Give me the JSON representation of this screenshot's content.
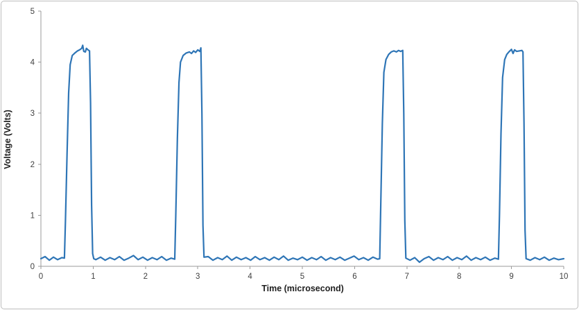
{
  "chart_data": {
    "type": "line",
    "title": "",
    "xlabel": "Time (microsecond)",
    "ylabel": "Voltage (Volts)",
    "xlim": [
      0,
      10
    ],
    "ylim": [
      0,
      5
    ],
    "x_ticks": [
      "0",
      "1",
      "2",
      "3",
      "4",
      "5",
      "6",
      "7",
      "8",
      "9",
      "10"
    ],
    "y_ticks": [
      "0",
      "1",
      "2",
      "3",
      "4",
      "5"
    ],
    "grid": false,
    "legend": "none",
    "line_color": "#2E75B6",
    "axis_color": "#9a9a9a",
    "plot_bg": "#ffffff",
    "series": [
      {
        "name": "voltage-waveform",
        "points": [
          [
            0,
            0.15
          ],
          [
            0.08,
            0.19
          ],
          [
            0.16,
            0.12
          ],
          [
            0.24,
            0.18
          ],
          [
            0.32,
            0.13
          ],
          [
            0.4,
            0.17
          ],
          [
            0.45,
            0.16
          ],
          [
            0.47,
            0.9
          ],
          [
            0.5,
            2.2
          ],
          [
            0.53,
            3.4
          ],
          [
            0.56,
            3.95
          ],
          [
            0.6,
            4.13
          ],
          [
            0.65,
            4.18
          ],
          [
            0.7,
            4.22
          ],
          [
            0.74,
            4.24
          ],
          [
            0.78,
            4.27
          ],
          [
            0.8,
            4.33
          ],
          [
            0.82,
            4.21
          ],
          [
            0.85,
            4.2
          ],
          [
            0.87,
            4.27
          ],
          [
            0.9,
            4.24
          ],
          [
            0.93,
            4.22
          ],
          [
            0.95,
            3.2
          ],
          [
            0.97,
            1.2
          ],
          [
            0.99,
            0.25
          ],
          [
            1.01,
            0.15
          ],
          [
            1.05,
            0.13
          ],
          [
            1.14,
            0.18
          ],
          [
            1.23,
            0.12
          ],
          [
            1.32,
            0.17
          ],
          [
            1.41,
            0.13
          ],
          [
            1.5,
            0.19
          ],
          [
            1.59,
            0.12
          ],
          [
            1.68,
            0.16
          ],
          [
            1.77,
            0.21
          ],
          [
            1.86,
            0.13
          ],
          [
            1.95,
            0.18
          ],
          [
            2.04,
            0.12
          ],
          [
            2.13,
            0.17
          ],
          [
            2.22,
            0.13
          ],
          [
            2.31,
            0.19
          ],
          [
            2.4,
            0.12
          ],
          [
            2.49,
            0.16
          ],
          [
            2.56,
            0.14
          ],
          [
            2.58,
            1.0
          ],
          [
            2.61,
            2.5
          ],
          [
            2.64,
            3.6
          ],
          [
            2.67,
            4.0
          ],
          [
            2.72,
            4.13
          ],
          [
            2.78,
            4.18
          ],
          [
            2.84,
            4.2
          ],
          [
            2.88,
            4.17
          ],
          [
            2.92,
            4.22
          ],
          [
            2.96,
            4.19
          ],
          [
            3.0,
            4.24
          ],
          [
            3.04,
            4.21
          ],
          [
            3.06,
            4.28
          ],
          [
            3.08,
            3.0
          ],
          [
            3.1,
            0.8
          ],
          [
            3.12,
            0.18
          ],
          [
            3.2,
            0.19
          ],
          [
            3.29,
            0.12
          ],
          [
            3.38,
            0.17
          ],
          [
            3.47,
            0.13
          ],
          [
            3.56,
            0.2
          ],
          [
            3.65,
            0.12
          ],
          [
            3.74,
            0.18
          ],
          [
            3.83,
            0.13
          ],
          [
            3.92,
            0.17
          ],
          [
            4.01,
            0.12
          ],
          [
            4.1,
            0.19
          ],
          [
            4.19,
            0.13
          ],
          [
            4.28,
            0.17
          ],
          [
            4.37,
            0.12
          ],
          [
            4.46,
            0.18
          ],
          [
            4.55,
            0.13
          ],
          [
            4.64,
            0.2
          ],
          [
            4.73,
            0.12
          ],
          [
            4.82,
            0.16
          ],
          [
            4.91,
            0.13
          ],
          [
            5.0,
            0.18
          ],
          [
            5.09,
            0.12
          ],
          [
            5.18,
            0.17
          ],
          [
            5.27,
            0.13
          ],
          [
            5.36,
            0.19
          ],
          [
            5.45,
            0.12
          ],
          [
            5.54,
            0.17
          ],
          [
            5.63,
            0.13
          ],
          [
            5.72,
            0.18
          ],
          [
            5.81,
            0.12
          ],
          [
            5.9,
            0.16
          ],
          [
            5.99,
            0.2
          ],
          [
            6.08,
            0.13
          ],
          [
            6.17,
            0.17
          ],
          [
            6.26,
            0.12
          ],
          [
            6.35,
            0.18
          ],
          [
            6.44,
            0.14
          ],
          [
            6.48,
            0.15
          ],
          [
            6.5,
            1.2
          ],
          [
            6.53,
            2.8
          ],
          [
            6.56,
            3.8
          ],
          [
            6.6,
            4.05
          ],
          [
            6.65,
            4.15
          ],
          [
            6.7,
            4.2
          ],
          [
            6.75,
            4.22
          ],
          [
            6.8,
            4.2
          ],
          [
            6.84,
            4.23
          ],
          [
            6.88,
            4.21
          ],
          [
            6.92,
            4.23
          ],
          [
            6.94,
            3.0
          ],
          [
            6.96,
            0.9
          ],
          [
            6.98,
            0.16
          ],
          [
            7.06,
            0.12
          ],
          [
            7.15,
            0.17
          ],
          [
            7.24,
            0.08
          ],
          [
            7.33,
            0.15
          ],
          [
            7.42,
            0.19
          ],
          [
            7.51,
            0.12
          ],
          [
            7.6,
            0.17
          ],
          [
            7.69,
            0.13
          ],
          [
            7.78,
            0.19
          ],
          [
            7.87,
            0.12
          ],
          [
            7.96,
            0.17
          ],
          [
            8.05,
            0.13
          ],
          [
            8.14,
            0.2
          ],
          [
            8.23,
            0.12
          ],
          [
            8.32,
            0.17
          ],
          [
            8.41,
            0.13
          ],
          [
            8.5,
            0.18
          ],
          [
            8.59,
            0.12
          ],
          [
            8.68,
            0.16
          ],
          [
            8.75,
            0.14
          ],
          [
            8.77,
            1.0
          ],
          [
            8.8,
            2.6
          ],
          [
            8.83,
            3.7
          ],
          [
            8.87,
            4.05
          ],
          [
            8.91,
            4.15
          ],
          [
            8.95,
            4.2
          ],
          [
            9.0,
            4.25
          ],
          [
            9.03,
            4.17
          ],
          [
            9.06,
            4.24
          ],
          [
            9.1,
            4.21
          ],
          [
            9.15,
            4.22
          ],
          [
            9.2,
            4.23
          ],
          [
            9.22,
            4.2
          ],
          [
            9.24,
            2.8
          ],
          [
            9.26,
            0.7
          ],
          [
            9.28,
            0.15
          ],
          [
            9.36,
            0.12
          ],
          [
            9.45,
            0.17
          ],
          [
            9.54,
            0.13
          ],
          [
            9.63,
            0.18
          ],
          [
            9.72,
            0.12
          ],
          [
            9.81,
            0.16
          ],
          [
            9.9,
            0.13
          ],
          [
            10,
            0.15
          ]
        ]
      }
    ]
  }
}
